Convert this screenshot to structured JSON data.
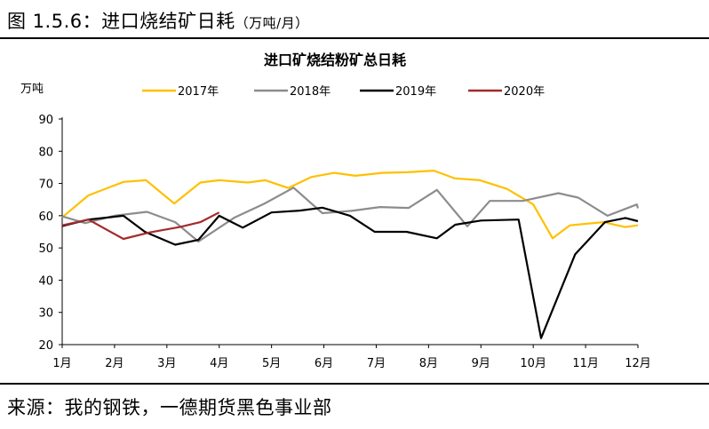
{
  "figure": {
    "caption_prefix": "图 1.5.6：进口烧结矿日耗",
    "caption_unit": "（万吨/月）",
    "source": "来源：我的钢铁，一德期货黑色事业部"
  },
  "chart_data": {
    "type": "line",
    "title": "进口矿烧结粉矿总日耗",
    "ylabel": "万吨",
    "ylim": [
      20,
      90
    ],
    "yticks": [
      20,
      30,
      40,
      50,
      60,
      70,
      80,
      90
    ],
    "categories": [
      "1月",
      "2月",
      "3月",
      "4月",
      "5月",
      "6月",
      "7月",
      "8月",
      "9月",
      "10月",
      "11月",
      "12月"
    ],
    "x_max": 11,
    "grid": false,
    "legend_position": "top",
    "series": [
      {
        "name": "2017年",
        "color": "#FFC000",
        "x": [
          0,
          0.5,
          1.17,
          1.6,
          2.14,
          2.64,
          3.0,
          3.55,
          3.88,
          4.32,
          4.76,
          5.2,
          5.6,
          6.12,
          6.6,
          7.1,
          7.5,
          7.98,
          8.5,
          9.0,
          9.37,
          9.7,
          10.34,
          10.75,
          11.0
        ],
        "y": [
          59.5,
          66.3,
          70.5,
          71,
          63.8,
          70.3,
          71,
          70.3,
          71,
          68.6,
          72,
          73.3,
          72.4,
          73.3,
          73.5,
          74,
          71.6,
          71,
          68.3,
          63.5,
          53,
          57,
          58,
          56.5,
          57
        ]
      },
      {
        "name": "2018年",
        "color": "#8C8C8C",
        "x": [
          0,
          0.44,
          1.0,
          1.62,
          2.16,
          2.6,
          3.3,
          3.86,
          4.42,
          4.97,
          5.53,
          6.07,
          6.62,
          7.16,
          7.74,
          8.17,
          8.8,
          9.48,
          9.86,
          10.42,
          10.98
        ],
        "y": [
          59.8,
          57.7,
          60,
          61.2,
          58,
          52,
          59.5,
          63.7,
          68.7,
          60.8,
          61.5,
          62.7,
          62.4,
          68,
          56.7,
          64.6,
          64.6,
          67,
          65.6,
          60,
          63.5
        ],
        "y_tail": [
          62.3
        ]
      },
      {
        "name": "2019年",
        "color": "#000000",
        "x": [
          0,
          0.5,
          1.17,
          1.58,
          2.16,
          2.6,
          3.0,
          3.45,
          4.0,
          4.54,
          4.97,
          5.5,
          5.97,
          6.58,
          7.16,
          7.51,
          8.0,
          8.72,
          9.15,
          9.8,
          10.37,
          10.76,
          11.0
        ],
        "y": [
          56.8,
          58.8,
          60,
          55,
          51,
          52.5,
          60,
          56.3,
          61,
          61.6,
          62.5,
          60,
          55,
          55,
          53,
          57.2,
          58.5,
          58.8,
          22,
          48,
          58,
          59.3,
          58.3
        ]
      },
      {
        "name": "2020年",
        "color": "#A52A2A",
        "x": [
          0,
          0.5,
          1.17,
          1.67,
          2.25,
          2.64,
          3.0
        ],
        "y": [
          57,
          58.8,
          52.8,
          54.8,
          56.5,
          58,
          61
        ]
      }
    ]
  }
}
